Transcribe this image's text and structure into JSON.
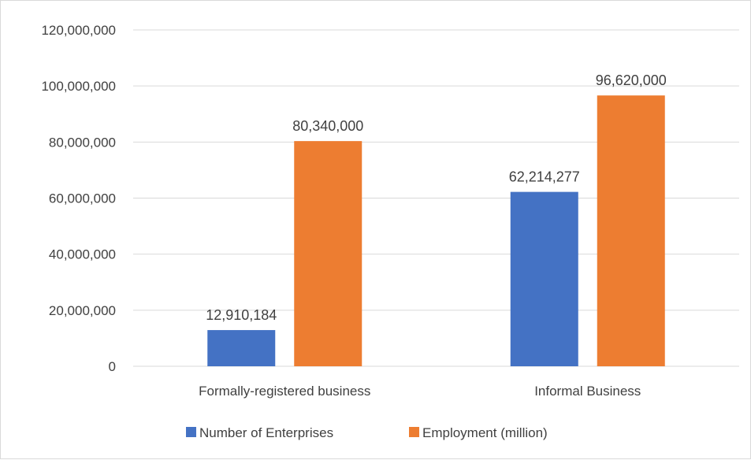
{
  "chart_data": {
    "type": "bar",
    "categories": [
      "Formally-registered business",
      "Informal Business"
    ],
    "series": [
      {
        "name": "Number of Enterprises",
        "color": "#4472c4",
        "values": [
          12910184,
          62214277
        ]
      },
      {
        "name": "Employment (million)",
        "color": "#ed7d31",
        "values": [
          80340000,
          96620000
        ]
      }
    ],
    "data_labels": [
      [
        "12,910,184",
        "62,214,277"
      ],
      [
        "80,340,000",
        "96,620,000"
      ]
    ],
    "ylim": [
      0,
      120000000
    ],
    "yticks": [
      0,
      20000000,
      40000000,
      60000000,
      80000000,
      100000000,
      120000000
    ],
    "ytick_labels": [
      "0",
      "20,000,000",
      "40,000,000",
      "60,000,000",
      "80,000,000",
      "100,000,000",
      "120,000,000"
    ],
    "grid": true,
    "legend": "bottom"
  }
}
